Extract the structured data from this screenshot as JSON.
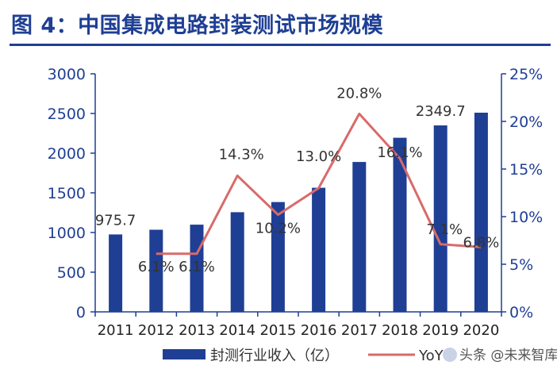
{
  "title": "图 4：中国集成电路封装测试市场规模",
  "watermark": "头条 @未来智库",
  "colors": {
    "bar": "#1f3f94",
    "line": "#d96a6a",
    "axis": "#1f3f94",
    "title": "#1f3f94",
    "text": "#333333"
  },
  "chart_data": {
    "type": "bar+line",
    "categories": [
      "2011",
      "2012",
      "2013",
      "2014",
      "2015",
      "2016",
      "2017",
      "2018",
      "2019",
      "2020"
    ],
    "series": [
      {
        "name": "封测行业收入（亿）",
        "type": "bar",
        "axis": "left",
        "values": [
          975.7,
          1035,
          1099,
          1256,
          1384,
          1564,
          1889,
          2194,
          2349.7,
          2510
        ],
        "data_labels": [
          "975.7",
          "",
          "",
          "",
          "",
          "",
          "",
          "",
          "2349.7",
          ""
        ]
      },
      {
        "name": "YoY",
        "type": "line",
        "axis": "right",
        "values": [
          null,
          6.1,
          6.1,
          14.3,
          10.2,
          13.0,
          20.8,
          16.1,
          7.1,
          6.8
        ],
        "data_labels": [
          "",
          "6.1%",
          "6.1%",
          "14.3%",
          "10.2%",
          "13.0%",
          "20.8%",
          "16.1%",
          "7.1%",
          "6.8%"
        ]
      }
    ],
    "y_left": {
      "min": 0,
      "max": 3000,
      "ticks": [
        "0",
        "500",
        "1000",
        "1500",
        "2000",
        "2500",
        "3000"
      ]
    },
    "y_right": {
      "min": 0,
      "max": 25,
      "ticks": [
        "0%",
        "5%",
        "10%",
        "15%",
        "20%",
        "25%"
      ]
    },
    "grid": false,
    "legend_position": "bottom"
  }
}
